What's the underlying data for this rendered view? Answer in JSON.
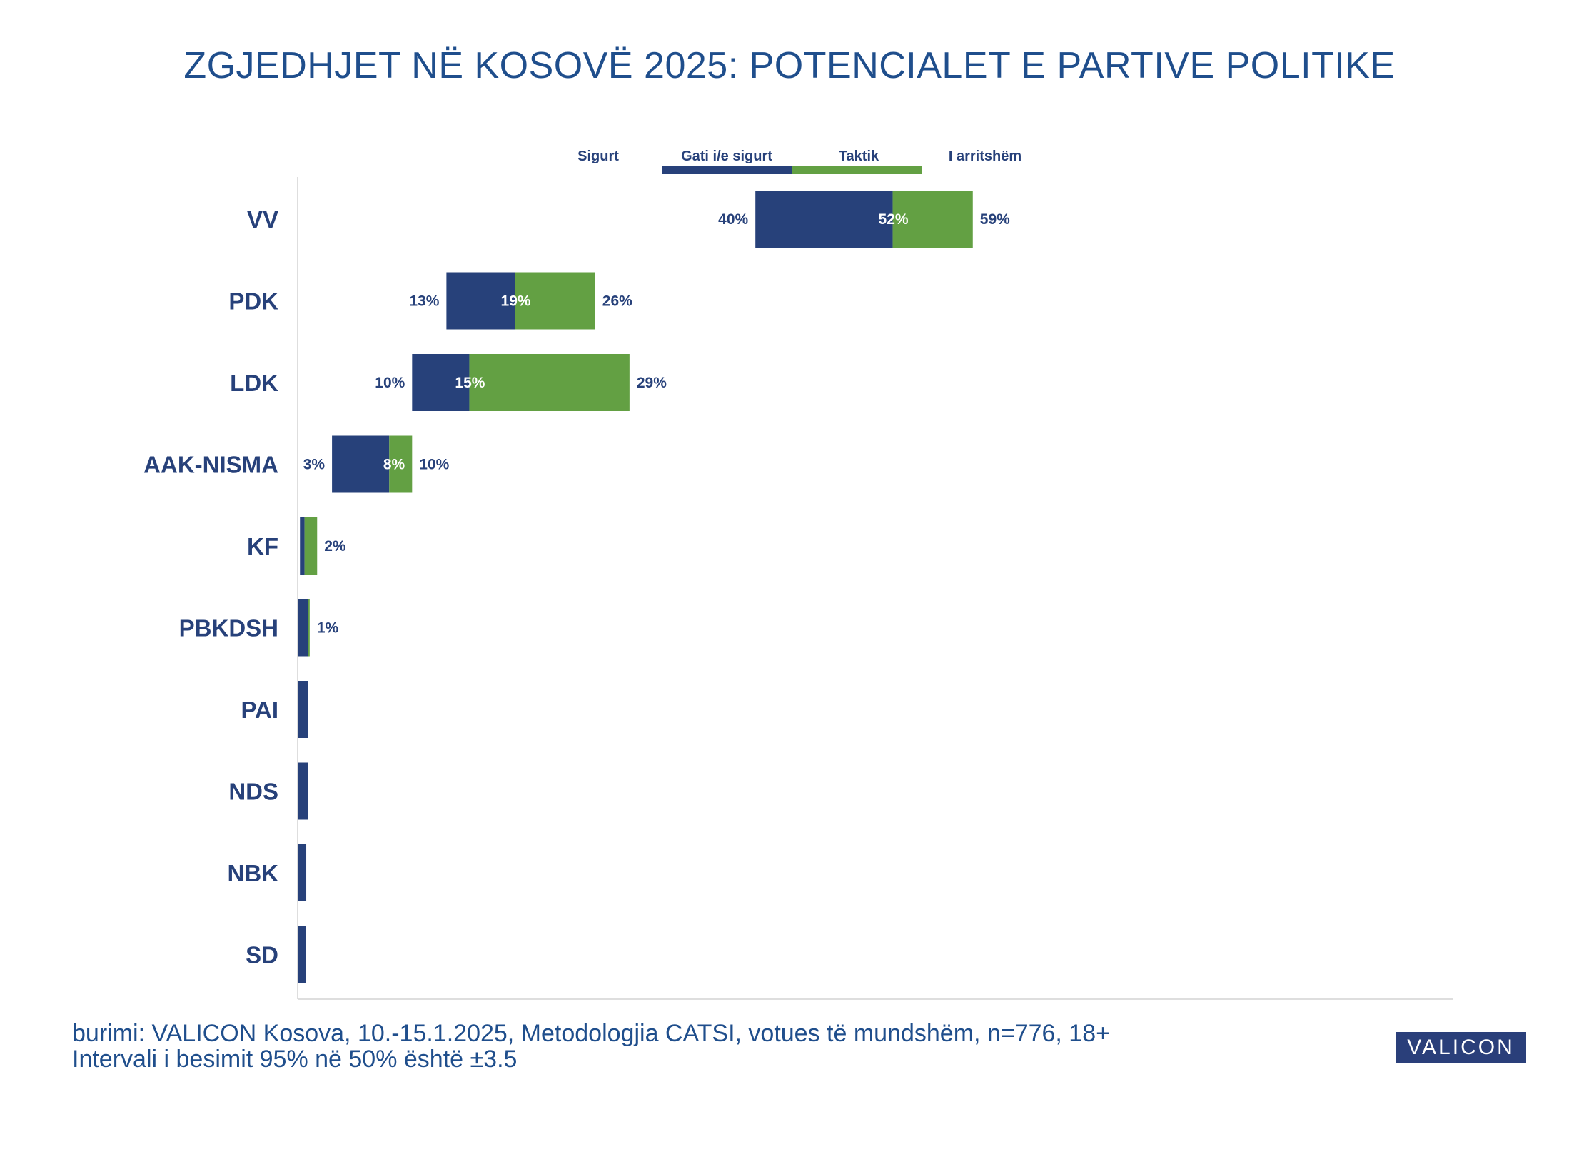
{
  "title": "ZGJEDHJET NË KOSOVË 2025: POTENCIALET E PARTIVE POLITIKE",
  "source_line1": "burimi: VALICON Kosova, 10.-15.1.2025, Metodologjia CATSI, votues të mundshëm, n=776, 18+",
  "source_line2": "Intervali i besimit 95% në 50% është ±3.5",
  "logo_text": "VALICON",
  "colors": {
    "blue": "#27417a",
    "green": "#63a043",
    "text": "#27417a",
    "title": "#1f4e8c"
  },
  "chart_data": {
    "type": "bar",
    "orientation": "horizontal",
    "stacked": true,
    "legend": {
      "position": "top",
      "labels": [
        "Sigurt",
        "Gati i/e sigurt",
        "Taktik",
        "I arritshëm"
      ]
    },
    "xlim": [
      0,
      100
    ],
    "categories": [
      "VV",
      "PDK",
      "LDK",
      "AAK-NISMA",
      "KF",
      "PBKDSH",
      "PAI",
      "NDS",
      "NBK",
      "SD"
    ],
    "bars": [
      {
        "party": "VV",
        "start": 40,
        "mid": 52,
        "end": 59,
        "labels": [
          "40%",
          "52%",
          "59%"
        ]
      },
      {
        "party": "PDK",
        "start": 13,
        "mid": 19,
        "end": 26,
        "labels": [
          "13%",
          "19%",
          "26%"
        ]
      },
      {
        "party": "LDK",
        "start": 10,
        "mid": 15,
        "end": 29,
        "labels": [
          "10%",
          "15%",
          "29%"
        ]
      },
      {
        "party": "AAK-NISMA",
        "start": 3,
        "mid": 8,
        "end": 10,
        "labels": [
          "3%",
          "8%",
          "10%"
        ]
      },
      {
        "party": "KF",
        "start": 0.2,
        "mid": 0.6,
        "end": 1.7,
        "labels": [
          "",
          "",
          "2%"
        ]
      },
      {
        "party": "PBKDSH",
        "start": 0,
        "mid": 0.9,
        "end": 1.05,
        "labels": [
          "",
          "",
          "1%"
        ]
      },
      {
        "party": "PAI",
        "start": 0,
        "mid": 0.9,
        "end": 0.9,
        "labels": [
          "",
          "",
          ""
        ]
      },
      {
        "party": "NDS",
        "start": 0,
        "mid": 0.9,
        "end": 0.9,
        "labels": [
          "",
          "",
          ""
        ]
      },
      {
        "party": "NBK",
        "start": 0,
        "mid": 0.75,
        "end": 0.75,
        "labels": [
          "",
          "",
          ""
        ]
      },
      {
        "party": "SD",
        "start": 0,
        "mid": 0.7,
        "end": 0.7,
        "labels": [
          "",
          "",
          ""
        ]
      }
    ]
  }
}
